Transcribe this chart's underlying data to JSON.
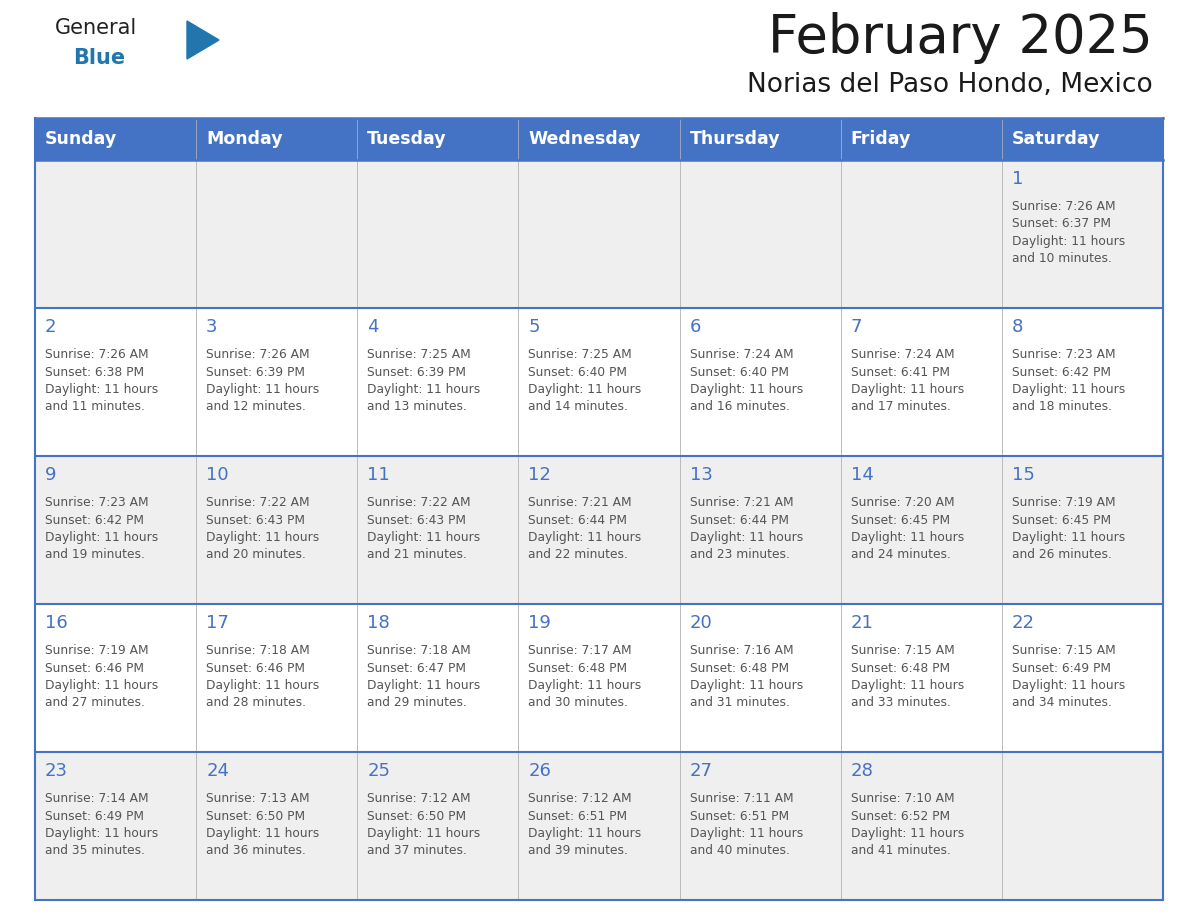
{
  "title": "February 2025",
  "subtitle": "Norias del Paso Hondo, Mexico",
  "days_of_week": [
    "Sunday",
    "Monday",
    "Tuesday",
    "Wednesday",
    "Thursday",
    "Friday",
    "Saturday"
  ],
  "header_bg": "#4472C4",
  "header_text": "#FFFFFF",
  "cell_bg_odd": "#EFEFEF",
  "cell_bg_even": "#FFFFFF",
  "line_color": "#4472C4",
  "day_number_color": "#4472C4",
  "info_text_color": "#555555",
  "title_color": "#1a1a1a",
  "calendar_data": [
    [
      null,
      null,
      null,
      null,
      null,
      null,
      {
        "day": 1,
        "sunrise": "7:26 AM",
        "sunset": "6:37 PM",
        "daylight": "11 hours and 10 minutes."
      }
    ],
    [
      {
        "day": 2,
        "sunrise": "7:26 AM",
        "sunset": "6:38 PM",
        "daylight": "11 hours and 11 minutes."
      },
      {
        "day": 3,
        "sunrise": "7:26 AM",
        "sunset": "6:39 PM",
        "daylight": "11 hours and 12 minutes."
      },
      {
        "day": 4,
        "sunrise": "7:25 AM",
        "sunset": "6:39 PM",
        "daylight": "11 hours and 13 minutes."
      },
      {
        "day": 5,
        "sunrise": "7:25 AM",
        "sunset": "6:40 PM",
        "daylight": "11 hours and 14 minutes."
      },
      {
        "day": 6,
        "sunrise": "7:24 AM",
        "sunset": "6:40 PM",
        "daylight": "11 hours and 16 minutes."
      },
      {
        "day": 7,
        "sunrise": "7:24 AM",
        "sunset": "6:41 PM",
        "daylight": "11 hours and 17 minutes."
      },
      {
        "day": 8,
        "sunrise": "7:23 AM",
        "sunset": "6:42 PM",
        "daylight": "11 hours and 18 minutes."
      }
    ],
    [
      {
        "day": 9,
        "sunrise": "7:23 AM",
        "sunset": "6:42 PM",
        "daylight": "11 hours and 19 minutes."
      },
      {
        "day": 10,
        "sunrise": "7:22 AM",
        "sunset": "6:43 PM",
        "daylight": "11 hours and 20 minutes."
      },
      {
        "day": 11,
        "sunrise": "7:22 AM",
        "sunset": "6:43 PM",
        "daylight": "11 hours and 21 minutes."
      },
      {
        "day": 12,
        "sunrise": "7:21 AM",
        "sunset": "6:44 PM",
        "daylight": "11 hours and 22 minutes."
      },
      {
        "day": 13,
        "sunrise": "7:21 AM",
        "sunset": "6:44 PM",
        "daylight": "11 hours and 23 minutes."
      },
      {
        "day": 14,
        "sunrise": "7:20 AM",
        "sunset": "6:45 PM",
        "daylight": "11 hours and 24 minutes."
      },
      {
        "day": 15,
        "sunrise": "7:19 AM",
        "sunset": "6:45 PM",
        "daylight": "11 hours and 26 minutes."
      }
    ],
    [
      {
        "day": 16,
        "sunrise": "7:19 AM",
        "sunset": "6:46 PM",
        "daylight": "11 hours and 27 minutes."
      },
      {
        "day": 17,
        "sunrise": "7:18 AM",
        "sunset": "6:46 PM",
        "daylight": "11 hours and 28 minutes."
      },
      {
        "day": 18,
        "sunrise": "7:18 AM",
        "sunset": "6:47 PM",
        "daylight": "11 hours and 29 minutes."
      },
      {
        "day": 19,
        "sunrise": "7:17 AM",
        "sunset": "6:48 PM",
        "daylight": "11 hours and 30 minutes."
      },
      {
        "day": 20,
        "sunrise": "7:16 AM",
        "sunset": "6:48 PM",
        "daylight": "11 hours and 31 minutes."
      },
      {
        "day": 21,
        "sunrise": "7:15 AM",
        "sunset": "6:48 PM",
        "daylight": "11 hours and 33 minutes."
      },
      {
        "day": 22,
        "sunrise": "7:15 AM",
        "sunset": "6:49 PM",
        "daylight": "11 hours and 34 minutes."
      }
    ],
    [
      {
        "day": 23,
        "sunrise": "7:14 AM",
        "sunset": "6:49 PM",
        "daylight": "11 hours and 35 minutes."
      },
      {
        "day": 24,
        "sunrise": "7:13 AM",
        "sunset": "6:50 PM",
        "daylight": "11 hours and 36 minutes."
      },
      {
        "day": 25,
        "sunrise": "7:12 AM",
        "sunset": "6:50 PM",
        "daylight": "11 hours and 37 minutes."
      },
      {
        "day": 26,
        "sunrise": "7:12 AM",
        "sunset": "6:51 PM",
        "daylight": "11 hours and 39 minutes."
      },
      {
        "day": 27,
        "sunrise": "7:11 AM",
        "sunset": "6:51 PM",
        "daylight": "11 hours and 40 minutes."
      },
      {
        "day": 28,
        "sunrise": "7:10 AM",
        "sunset": "6:52 PM",
        "daylight": "11 hours and 41 minutes."
      },
      null
    ]
  ],
  "logo_blue": "#2176AE",
  "logo_black": "#222222",
  "fig_width": 11.88,
  "fig_height": 9.18,
  "dpi": 100
}
